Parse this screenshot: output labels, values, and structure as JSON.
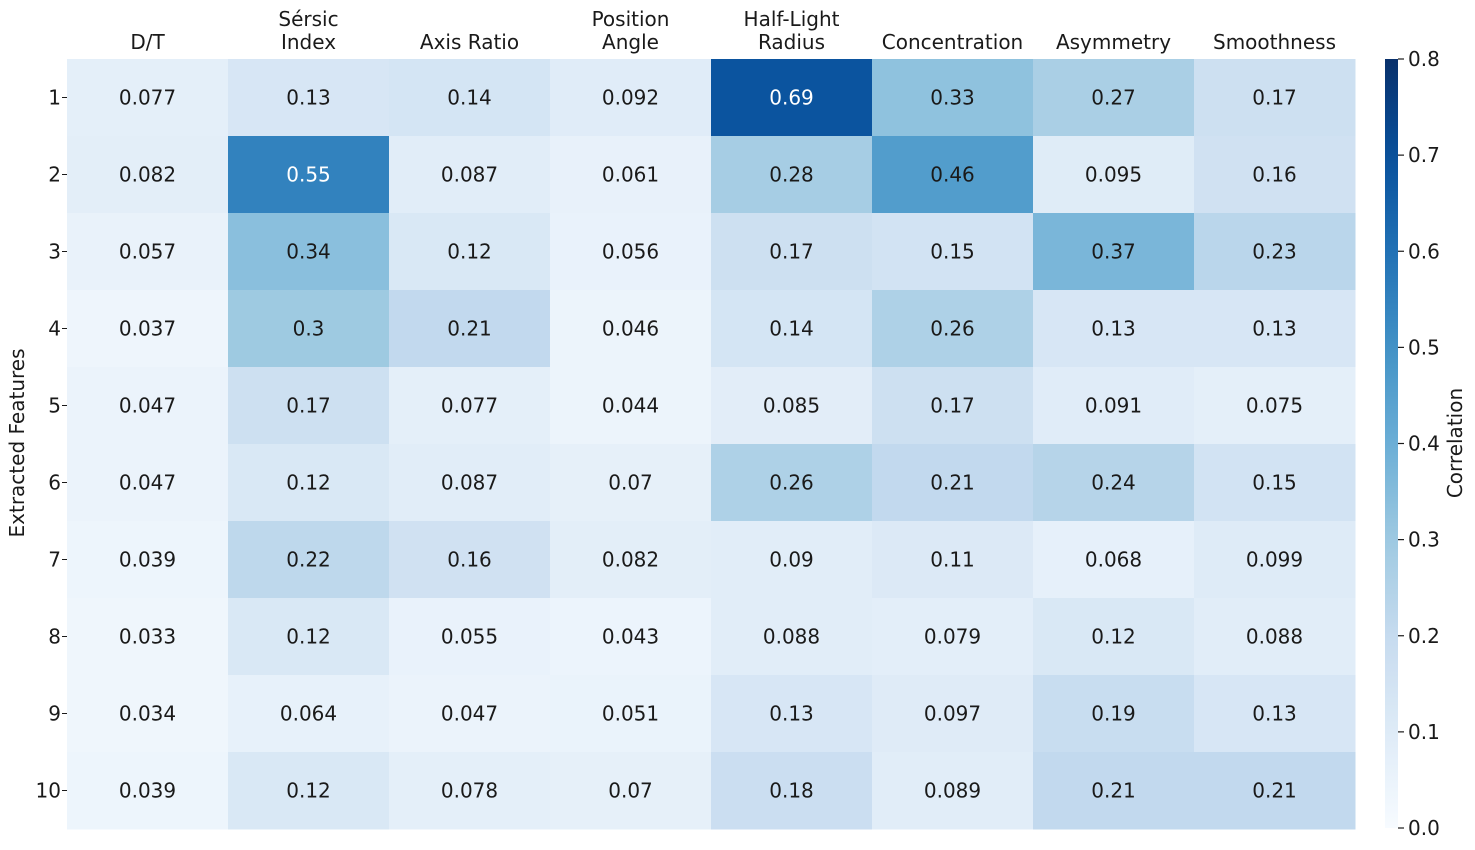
{
  "chart_data": {
    "type": "heatmap",
    "title": "",
    "xlabel": "",
    "ylabel": "Extracted Features",
    "columns": [
      {
        "lines": [
          "",
          "D/T"
        ]
      },
      {
        "lines": [
          "Sérsic",
          "Index"
        ]
      },
      {
        "lines": [
          "",
          "Axis Ratio"
        ]
      },
      {
        "lines": [
          "Position",
          "Angle"
        ]
      },
      {
        "lines": [
          "Half-Light",
          "Radius"
        ]
      },
      {
        "lines": [
          "",
          "Concentration"
        ]
      },
      {
        "lines": [
          "",
          "Asymmetry"
        ]
      },
      {
        "lines": [
          "",
          "Smoothness"
        ]
      }
    ],
    "rows": [
      "1",
      "2",
      "3",
      "4",
      "5",
      "6",
      "7",
      "8",
      "9",
      "10"
    ],
    "values": [
      [
        "0.077",
        "0.13",
        "0.14",
        "0.092",
        "0.69",
        "0.33",
        "0.27",
        "0.17"
      ],
      [
        "0.082",
        "0.55",
        "0.087",
        "0.061",
        "0.28",
        "0.46",
        "0.095",
        "0.16"
      ],
      [
        "0.057",
        "0.34",
        "0.12",
        "0.056",
        "0.17",
        "0.15",
        "0.37",
        "0.23"
      ],
      [
        "0.037",
        "0.3",
        "0.21",
        "0.046",
        "0.14",
        "0.26",
        "0.13",
        "0.13"
      ],
      [
        "0.047",
        "0.17",
        "0.077",
        "0.044",
        "0.085",
        "0.17",
        "0.091",
        "0.075"
      ],
      [
        "0.047",
        "0.12",
        "0.087",
        "0.07",
        "0.26",
        "0.21",
        "0.24",
        "0.15"
      ],
      [
        "0.039",
        "0.22",
        "0.16",
        "0.082",
        "0.09",
        "0.11",
        "0.068",
        "0.099"
      ],
      [
        "0.033",
        "0.12",
        "0.055",
        "0.043",
        "0.088",
        "0.079",
        "0.12",
        "0.088"
      ],
      [
        "0.034",
        "0.064",
        "0.047",
        "0.051",
        "0.13",
        "0.097",
        "0.19",
        "0.13"
      ],
      [
        "0.039",
        "0.12",
        "0.078",
        "0.07",
        "0.18",
        "0.089",
        "0.21",
        "0.21"
      ]
    ],
    "colorbar": {
      "label": "Correlation",
      "range": [
        0.0,
        0.8
      ],
      "ticks": [
        "0.0",
        "0.1",
        "0.2",
        "0.3",
        "0.4",
        "0.5",
        "0.6",
        "0.7",
        "0.8"
      ],
      "colormap": "Blues"
    }
  }
}
